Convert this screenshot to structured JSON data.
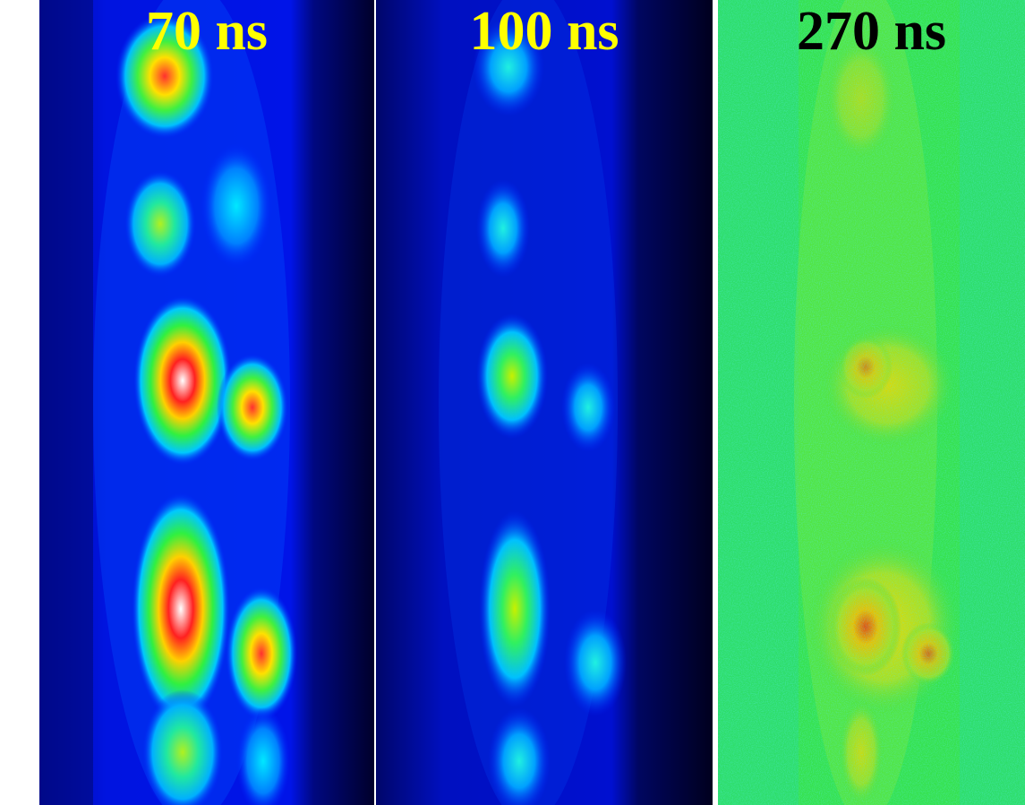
{
  "panels": [
    {
      "label": "70 ns",
      "label_color": "#ffff00",
      "colormap": "jet",
      "background": "dark-blue"
    },
    {
      "label": "100 ns",
      "label_color": "#ffff00",
      "colormap": "jet",
      "background": "dark-blue"
    },
    {
      "label": "270 ns",
      "label_color": "#000000",
      "colormap": "jet",
      "background": "green-noise"
    }
  ]
}
